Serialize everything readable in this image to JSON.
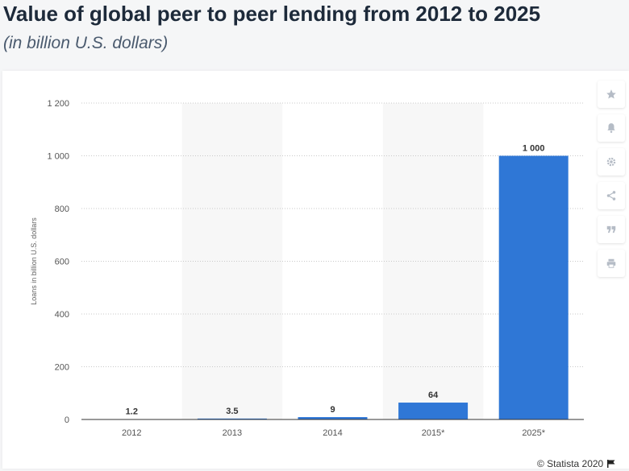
{
  "header": {
    "title": "Value of global peer to peer lending from 2012 to 2025",
    "subtitle": "(in billion U.S. dollars)"
  },
  "toolbar": {
    "icons": [
      "star-icon",
      "bell-icon",
      "gear-icon",
      "share-icon",
      "quote-icon",
      "print-icon"
    ]
  },
  "footer": {
    "credit": "© Statista 2020"
  },
  "colors": {
    "bar": "#2f77d6",
    "axis": "#333333",
    "grid": "#c8c8c8",
    "band": "#f7f7f7"
  },
  "chart_data": {
    "type": "bar",
    "categories": [
      "2012",
      "2013",
      "2014",
      "2015*",
      "2025*"
    ],
    "values": [
      1.2,
      3.5,
      9,
      64,
      1000
    ],
    "value_labels": [
      "1.2",
      "3.5",
      "9",
      "64",
      "1 000"
    ],
    "ylabel": "Loans in billion U.S. dollars",
    "xlabel": "",
    "ylim": [
      0,
      1200
    ],
    "yticks": [
      0,
      200,
      400,
      600,
      800,
      1000,
      1200
    ],
    "ytick_labels": [
      "0",
      "200",
      "400",
      "600",
      "800",
      "1 000",
      "1 200"
    ],
    "grid": true,
    "legend": "none"
  }
}
